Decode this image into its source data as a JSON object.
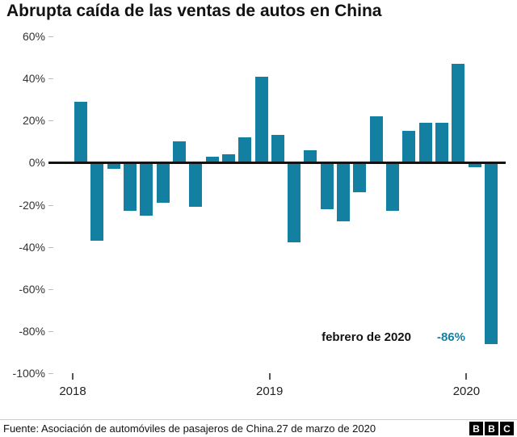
{
  "title": "Abrupta caída de las ventas de autos en China",
  "annotation": {
    "label": "febrero de 2020",
    "value": "-86%"
  },
  "footer": {
    "source": "Fuente: Asociación de automóviles de pasajeros de China.27 de marzo de 2020",
    "logo_letters": [
      "B",
      "B",
      "C"
    ]
  },
  "colors": {
    "bar": "#1380A1",
    "accent_text": "#1380A1",
    "zero_line": "#121212"
  },
  "chart_data": {
    "type": "bar",
    "title": "Abrupta caída de las ventas de autos en China",
    "categories": [
      "2018-01",
      "2018-02",
      "2018-03",
      "2018-04",
      "2018-05",
      "2018-06",
      "2018-07",
      "2018-08",
      "2018-09",
      "2018-10",
      "2018-11",
      "2018-12",
      "2019-01",
      "2019-02",
      "2019-03",
      "2019-04",
      "2019-05",
      "2019-06",
      "2019-07",
      "2019-08",
      "2019-09",
      "2019-10",
      "2019-11",
      "2019-12",
      "2020-01",
      "2020-02"
    ],
    "values": [
      29,
      -37,
      -3,
      -23,
      -25,
      -19,
      10,
      -21,
      3,
      4,
      12,
      41,
      13,
      -38,
      6,
      -22,
      -28,
      -14,
      22,
      -23,
      15,
      19,
      19,
      47,
      -2,
      -86
    ],
    "unit": "%",
    "ylim": [
      -100,
      60
    ],
    "y_ticks": [
      60,
      40,
      20,
      0,
      -20,
      -40,
      -60,
      -80,
      -100
    ],
    "y_tick_labels": [
      "60%",
      "40%",
      "20%",
      "0%",
      "-20%",
      "-40%",
      "-60%",
      "-80%",
      "-100%"
    ],
    "x_tick_labels": [
      "2018",
      "2019",
      "2020"
    ],
    "x_tick_indices": [
      0,
      12,
      24
    ],
    "grid": false,
    "legend": "none",
    "annotation": {
      "text": "febrero de 2020",
      "value_text": "-86%",
      "target_category": "2020-02"
    }
  }
}
